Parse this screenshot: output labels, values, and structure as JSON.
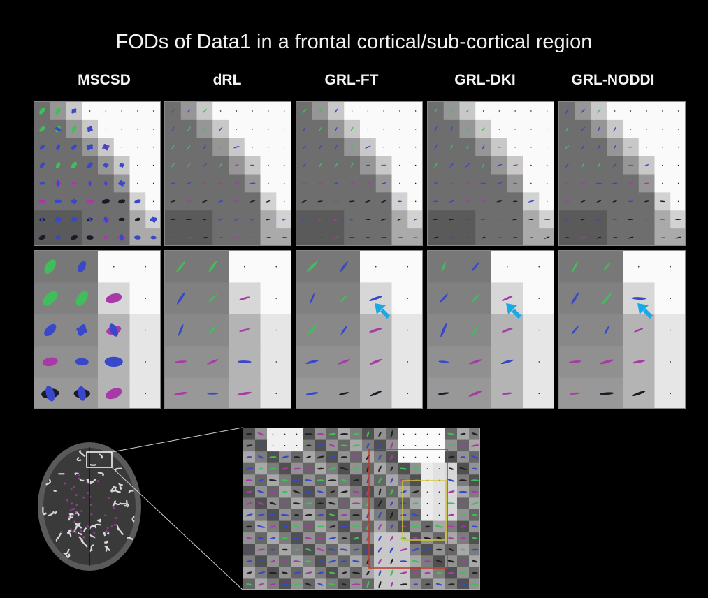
{
  "figure": {
    "title": "FODs of Data1 in a frontal cortical/sub-cortical region"
  },
  "methods": [
    {
      "label": "MSCSD"
    },
    {
      "label": "dRL"
    },
    {
      "label": "GRL-FT"
    },
    {
      "label": "GRL-DKI"
    },
    {
      "label": "GRL-NODDI"
    }
  ],
  "colors": {
    "background": "#000000",
    "arrow": "#19a9e6",
    "roi_red": "#c0392b",
    "roi_yellow": "#d4c43a",
    "roi_white": "#ffffff",
    "fod_blue": "#3848c8",
    "fod_green": "#3fbf5a",
    "fod_magenta": "#a83aa8"
  },
  "arrows": {
    "methods_with_arrow": [
      "GRL-FT",
      "GRL-DKI",
      "GRL-NODDI"
    ]
  }
}
